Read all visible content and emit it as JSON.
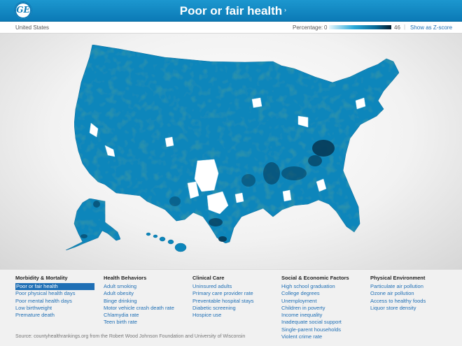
{
  "header": {
    "logo_text": "GE",
    "title": "Poor or fair health",
    "title_arrow": "›"
  },
  "subheader": {
    "region": "United States",
    "percentage_label": "Percentage:",
    "legend_min": "0",
    "legend_max": "46",
    "separator": "|",
    "zscore_link": "Show as Z-score",
    "ramp_colors": [
      "#e6f6fc",
      "#2aa9d9",
      "#0a6a96",
      "#031c2e"
    ]
  },
  "map": {
    "land_color": "#0d86bb",
    "dark_color": "#053a58",
    "light_color": "#ffffff"
  },
  "menus": [
    {
      "heading": "Morbidity & Mortality",
      "items": [
        "Poor or fair health",
        "Poor physical health days",
        "Poor mental health days",
        "Low birthweight",
        "Premature death"
      ]
    },
    {
      "heading": "Health Behaviors",
      "items": [
        "Adult smoking",
        "Adult obesity",
        "Binge drinking",
        "Motor vehicle crash death rate",
        "Chlamydia rate",
        "Teen birth rate"
      ]
    },
    {
      "heading": "Clinical Care",
      "items": [
        "Uninsured adults",
        "Primary care provider rate",
        "Preventable hospital stays",
        "Diabetic screening",
        "Hospice use"
      ]
    },
    {
      "heading": "Social & Economic Factors",
      "items": [
        "High school graduation",
        "College degrees",
        "Unemployment",
        "Children in poverty",
        "Income inequality",
        "Inadequate social support",
        "Single-parent households",
        "Violent crime rate"
      ]
    },
    {
      "heading": "Physical Environment",
      "items": [
        "Particulate air pollution",
        "Ozone air pollution",
        "Access to healthy foods",
        "Liquor store density"
      ]
    }
  ],
  "selected_item": "Poor or fair health",
  "source": "Source: countyhealthrankings.org from the Robert Wood Johnson Foundation and University of Wisconsin"
}
